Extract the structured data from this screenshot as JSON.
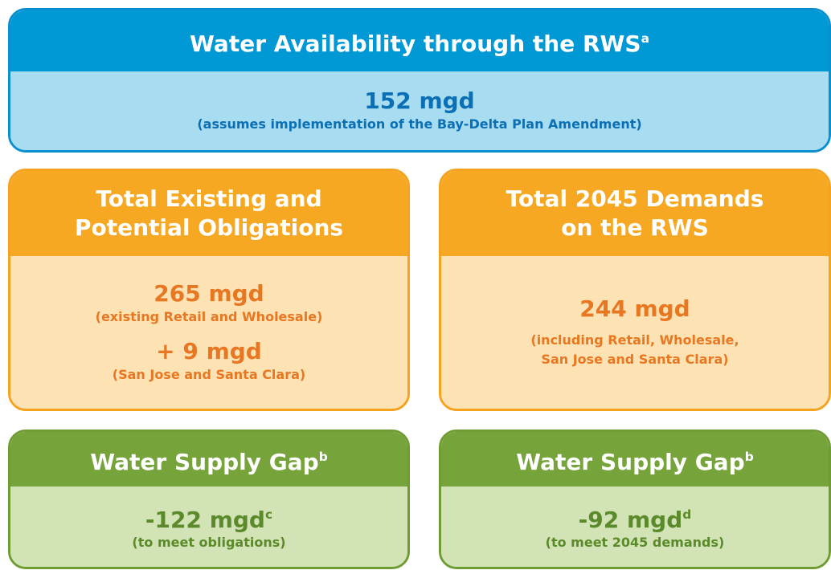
{
  "top": {
    "title": "Water Availability through the RWS",
    "title_note": "a",
    "value": "152 mgd",
    "note": "(assumes implementation of the Bay-Delta Plan Amendment)"
  },
  "obligations": {
    "title_lines": [
      "Total Existing and",
      "Potential Obligations"
    ],
    "value": "265 mgd",
    "note": "(existing Retail and Wholesale)",
    "extra_value": "+ 9 mgd",
    "extra_note": "(San Jose and Santa Clara)"
  },
  "demands": {
    "title_lines": [
      "Total 2045 Demands",
      "on the RWS"
    ],
    "value": "244 mgd",
    "note_lines": [
      "(including Retail, Wholesale,",
      "San Jose and Santa Clara)"
    ]
  },
  "gaps": [
    {
      "title": "Water Supply Gap",
      "title_note": "b",
      "value": "-122 mgd",
      "value_note": "c",
      "note": "(to meet obligations)"
    },
    {
      "title": "Water Supply Gap",
      "title_note": "b",
      "value": "-92 mgd",
      "value_note": "d",
      "note": "(to meet 2045 demands)"
    }
  ]
}
